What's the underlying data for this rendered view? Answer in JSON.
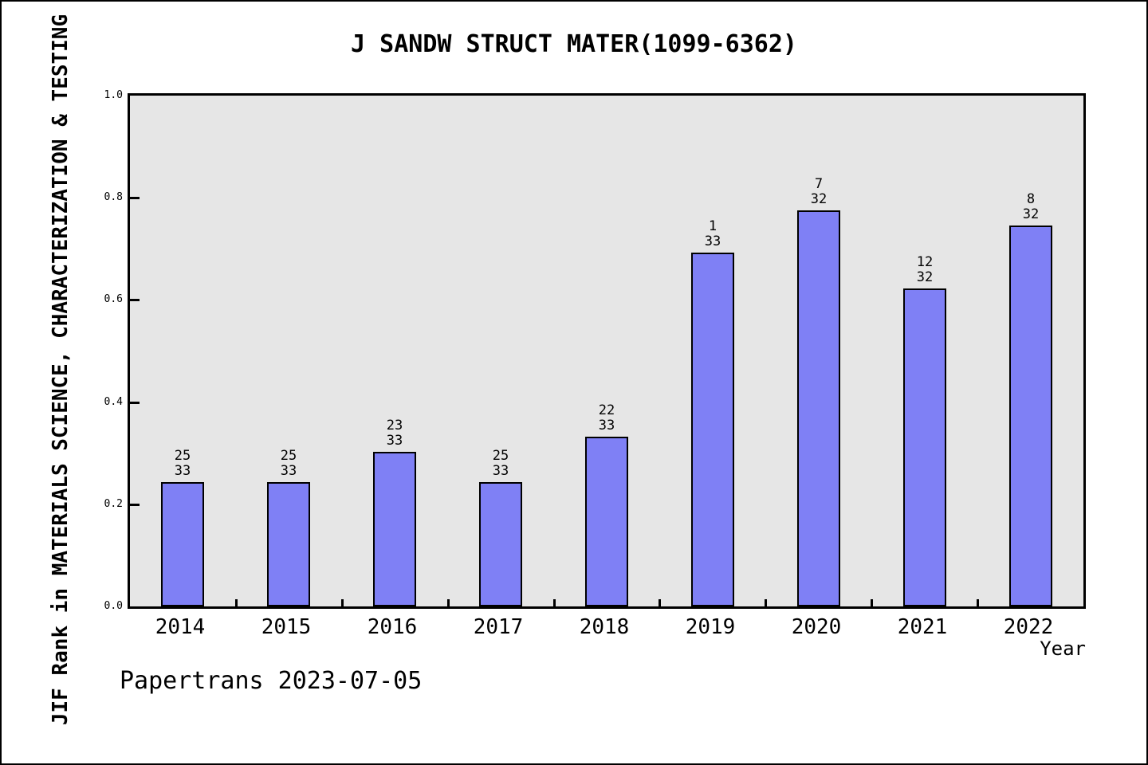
{
  "footer": "Papertrans 2023-07-05",
  "colors": {
    "bar_fill": "#7f80f5",
    "bar_border": "#000000",
    "plot_background": "#e6e6e6",
    "page_background": "#ffffff",
    "frame": "#000000"
  },
  "chart_data": {
    "type": "bar",
    "title": "J SANDW STRUCT MATER(1099-6362)",
    "xlabel": "Year",
    "ylabel": "JIF Rank in MATERIALS SCIENCE, CHARACTERIZATION & TESTING",
    "categories": [
      "2014",
      "2015",
      "2016",
      "2017",
      "2018",
      "2019",
      "2020",
      "2021",
      "2022"
    ],
    "values": [
      0.243,
      0.243,
      0.303,
      0.243,
      0.333,
      0.693,
      0.775,
      0.622,
      0.745
    ],
    "ranks": [
      25,
      25,
      23,
      25,
      22,
      1,
      7,
      12,
      8
    ],
    "totals": [
      33,
      33,
      33,
      33,
      33,
      33,
      32,
      32,
      32
    ],
    "bar_labels": [
      [
        "25",
        "33"
      ],
      [
        "25",
        "33"
      ],
      [
        "23",
        "33"
      ],
      [
        "25",
        "33"
      ],
      [
        "22",
        "33"
      ],
      [
        "1",
        "33"
      ],
      [
        "7",
        "32"
      ],
      [
        "12",
        "32"
      ],
      [
        "8",
        "32"
      ]
    ],
    "ylim": [
      0,
      1
    ],
    "ytick_values": [
      0.0,
      0.2,
      0.4,
      0.6,
      0.8,
      1.0
    ],
    "ytick_labels": [
      "0.0",
      "0.2",
      "0.4",
      "0.6",
      "0.8",
      "1.0"
    ],
    "grid": false,
    "legend_position": "none"
  }
}
